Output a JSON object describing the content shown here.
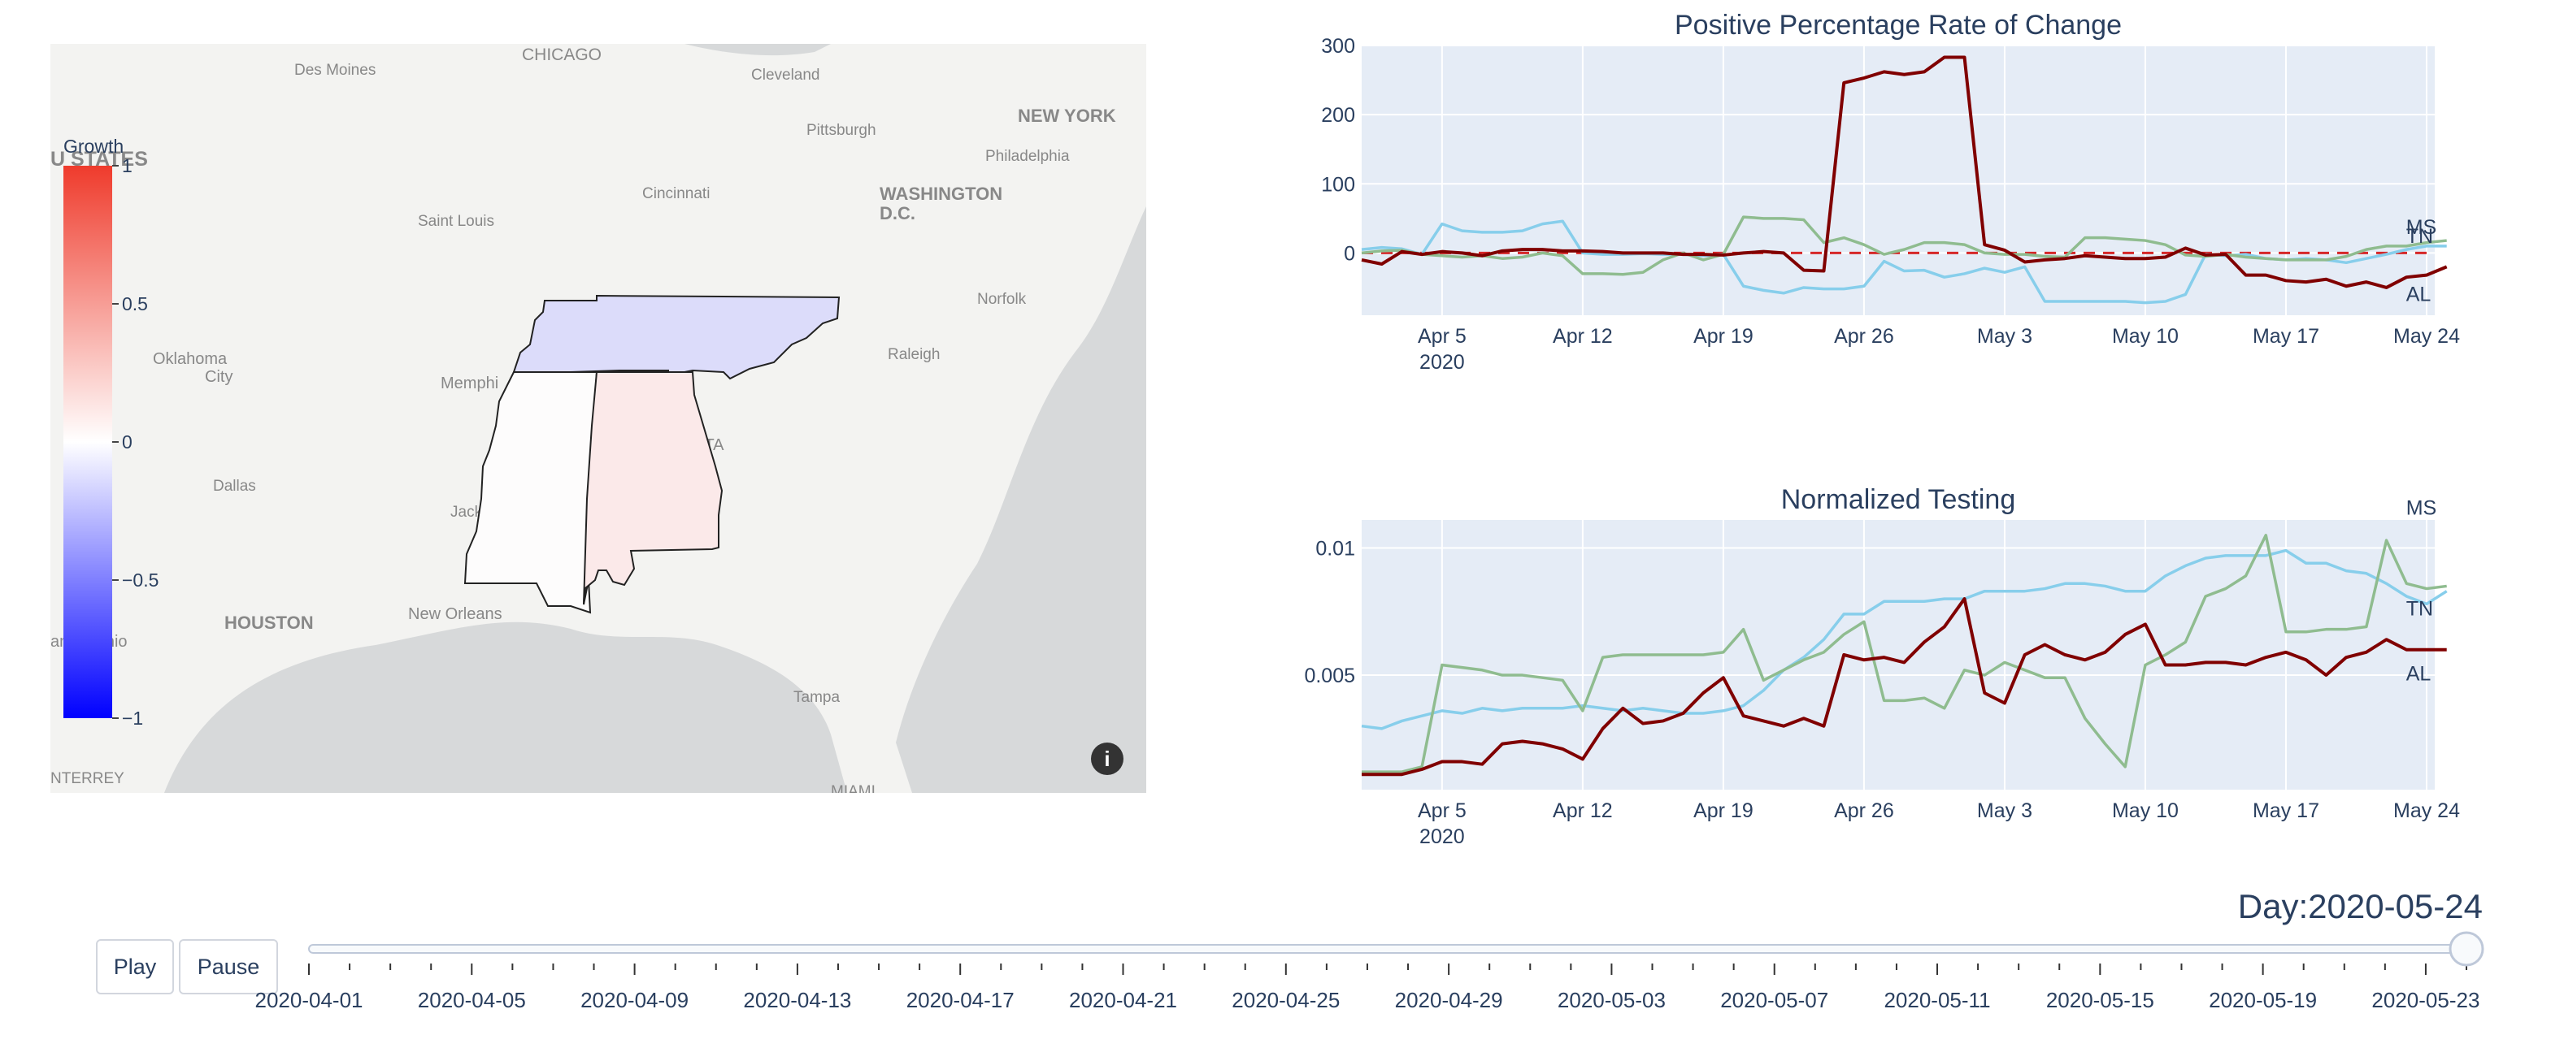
{
  "map": {
    "colorbar_title": "Growth",
    "colorbar_ticks": [
      "1",
      "0.5",
      "0",
      "−0.5",
      "−1"
    ],
    "colorbar_values": [
      1,
      0.5,
      0,
      -0.5,
      -1
    ],
    "states": [
      {
        "code": "TN",
        "growth": -0.15,
        "color": "#dcdcfa"
      },
      {
        "code": "MS",
        "growth": 0.01,
        "color": "#fdfcfc"
      },
      {
        "code": "AL",
        "growth": 0.08,
        "color": "#fbe9e9"
      }
    ],
    "city_labels": [
      "Des Moines",
      "CHICAGO",
      "Cleveland",
      "NEW YORK",
      "Pittsburgh",
      "Philadelphia",
      "WASHINGTON",
      "D.C.",
      "Cincinnati",
      "Saint Louis",
      "U STATES",
      "Norfolk",
      "Oklahoma",
      "City",
      "Memphi",
      "Raleigh",
      "NTA",
      "Dallas",
      "Jack",
      "HOUSTON",
      "New Orleans",
      "an Antonio",
      "Tampa",
      "NTERREY",
      "MIAMI"
    ],
    "info_icon": "info-icon"
  },
  "chart_data": [
    {
      "type": "line",
      "title": "Positive Percentage Rate of Change",
      "x_start": "2020-04-01",
      "x_end": "2020-05-24",
      "x_ticks": [
        "Apr 5",
        "Apr 12",
        "Apr 19",
        "Apr 26",
        "May 3",
        "May 10",
        "May 17",
        "May 24"
      ],
      "x_tick_year": "2020",
      "y_ticks": [
        "0",
        "100",
        "200",
        "300"
      ],
      "ylim": [
        -90,
        300
      ],
      "reference_line": {
        "y": 0,
        "color": "#d62728",
        "style": "dashed"
      },
      "series": [
        {
          "name": "AL",
          "color": "#800000",
          "values": [
            -10,
            -16,
            2,
            -2,
            2,
            0,
            -4,
            3,
            5,
            5,
            3,
            3,
            2,
            0,
            0,
            0,
            -2,
            -2,
            -3,
            0,
            2,
            0,
            -25,
            -26,
            246,
            253,
            262,
            258,
            262,
            283,
            283,
            12,
            4,
            -13,
            -10,
            -8,
            -4,
            -6,
            -8,
            -8,
            -6,
            7,
            -3,
            -2,
            -32,
            -32,
            -40,
            -42,
            -38,
            -48,
            -42,
            -50,
            -35,
            -32,
            -20
          ]
        },
        {
          "name": "TN",
          "color": "#87ceeb",
          "values": [
            5,
            8,
            6,
            -2,
            42,
            32,
            30,
            30,
            32,
            42,
            46,
            0,
            -2,
            -2,
            -1,
            -2,
            -2,
            -4,
            -2,
            -48,
            -54,
            -58,
            -50,
            -52,
            -52,
            -48,
            -12,
            -26,
            -25,
            -35,
            -30,
            -22,
            -28,
            -20,
            -70,
            -70,
            -70,
            -70,
            -70,
            -72,
            -70,
            -60,
            -2,
            -4,
            -2,
            -8,
            -10,
            -8,
            -10,
            -14,
            -8,
            -2,
            5,
            10,
            10
          ]
        },
        {
          "name": "MS",
          "color": "#8fbc8f",
          "values": [
            0,
            3,
            4,
            -2,
            -4,
            -6,
            -4,
            -8,
            -6,
            0,
            -4,
            -30,
            -30,
            -31,
            -28,
            -10,
            0,
            -10,
            -2,
            52,
            50,
            50,
            48,
            15,
            22,
            12,
            -2,
            5,
            15,
            15,
            12,
            0,
            -2,
            -2,
            -5,
            -6,
            22,
            22,
            20,
            18,
            12,
            -3,
            -5,
            -2,
            -6,
            -8,
            -10,
            -10,
            -10,
            -5,
            5,
            10,
            10,
            15,
            18
          ]
        }
      ]
    },
    {
      "type": "line",
      "title": "Normalized Testing",
      "x_start": "2020-04-01",
      "x_end": "2020-05-24",
      "x_ticks": [
        "Apr 5",
        "Apr 12",
        "Apr 19",
        "Apr 26",
        "May 3",
        "May 10",
        "May 17",
        "May 24"
      ],
      "x_tick_year": "2020",
      "y_ticks": [
        "0.005",
        "0.01"
      ],
      "ylim": [
        0.0005,
        0.0111
      ],
      "series": [
        {
          "name": "AL",
          "color": "#800000",
          "values": [
            0.0011,
            0.0011,
            0.0011,
            0.0013,
            0.0016,
            0.0016,
            0.0015,
            0.0023,
            0.0024,
            0.0023,
            0.0021,
            0.0017,
            0.0029,
            0.0037,
            0.0031,
            0.0032,
            0.0035,
            0.0043,
            0.0049,
            0.0034,
            0.0032,
            0.003,
            0.0033,
            0.003,
            0.0058,
            0.0056,
            0.0057,
            0.0055,
            0.0063,
            0.0069,
            0.008,
            0.0043,
            0.0039,
            0.0058,
            0.0062,
            0.0058,
            0.0056,
            0.0059,
            0.0066,
            0.007,
            0.0054,
            0.0054,
            0.0055,
            0.0055,
            0.0054,
            0.0057,
            0.0059,
            0.0056,
            0.005,
            0.0057,
            0.0059,
            0.0064,
            0.006,
            0.006,
            0.006
          ]
        },
        {
          "name": "TN",
          "color": "#87ceeb",
          "values": [
            0.003,
            0.0029,
            0.0032,
            0.0034,
            0.0036,
            0.0035,
            0.0037,
            0.0036,
            0.0037,
            0.0037,
            0.0037,
            0.0038,
            0.0037,
            0.0036,
            0.0037,
            0.0036,
            0.0035,
            0.0035,
            0.0036,
            0.0038,
            0.0044,
            0.0052,
            0.0057,
            0.0064,
            0.0074,
            0.0074,
            0.0079,
            0.0079,
            0.0079,
            0.008,
            0.008,
            0.0083,
            0.0083,
            0.0083,
            0.0084,
            0.0086,
            0.0086,
            0.0085,
            0.0083,
            0.0083,
            0.0089,
            0.0093,
            0.0096,
            0.0097,
            0.0097,
            0.0097,
            0.0099,
            0.0094,
            0.0094,
            0.0091,
            0.009,
            0.0086,
            0.0081,
            0.0078,
            0.0083
          ]
        },
        {
          "name": "MS",
          "color": "#8fbc8f",
          "values": [
            0.0012,
            0.0012,
            0.0012,
            0.0014,
            0.0054,
            0.0053,
            0.0052,
            0.005,
            0.005,
            0.0049,
            0.0048,
            0.0036,
            0.0057,
            0.0058,
            0.0058,
            0.0058,
            0.0058,
            0.0058,
            0.0059,
            0.0068,
            0.0048,
            0.0052,
            0.0056,
            0.0059,
            0.0066,
            0.0071,
            0.004,
            0.004,
            0.0041,
            0.0037,
            0.0052,
            0.005,
            0.0055,
            0.0052,
            0.0049,
            0.0049,
            0.0033,
            0.0023,
            0.0014,
            0.0054,
            0.0058,
            0.0063,
            0.0081,
            0.0084,
            0.0089,
            0.0105,
            0.0067,
            0.0067,
            0.0068,
            0.0068,
            0.0069,
            0.0103,
            0.0086,
            0.0084,
            0.0085
          ]
        }
      ]
    }
  ],
  "controls": {
    "play_label": "Play",
    "pause_label": "Pause",
    "current_day_prefix": "Day:",
    "current_day": "2020-05-24",
    "slider_value": "2020-05-24",
    "slider_labels": [
      "2020-04-01",
      "2020-04-05",
      "2020-04-09",
      "2020-04-13",
      "2020-04-17",
      "2020-04-21",
      "2020-04-25",
      "2020-04-29",
      "2020-05-03",
      "2020-05-07",
      "2020-05-11",
      "2020-05-15",
      "2020-05-19",
      "2020-05-23"
    ]
  }
}
